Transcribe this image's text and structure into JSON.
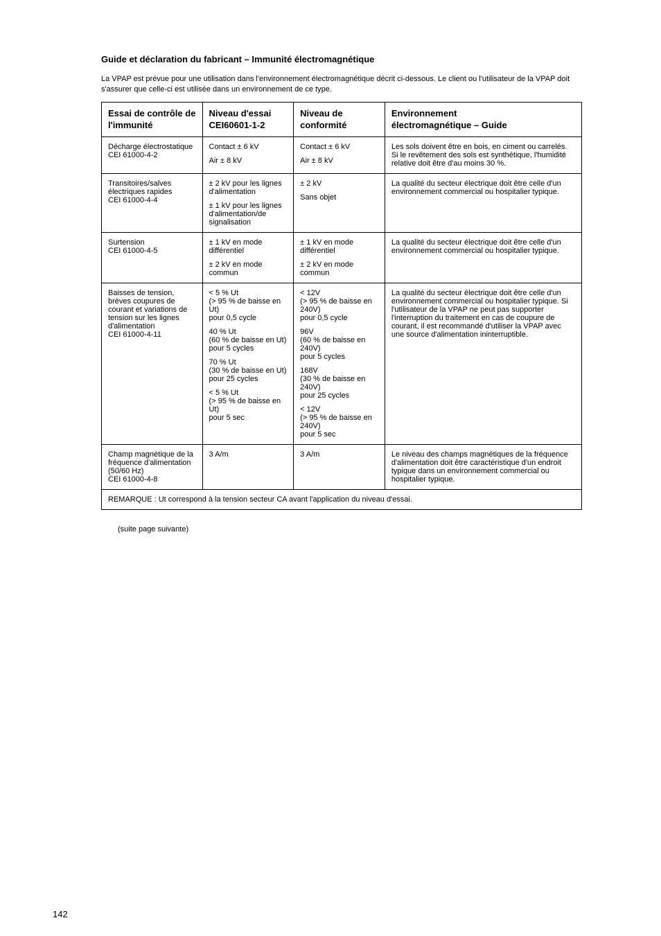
{
  "heading": "Guide et déclaration du fabricant – Immunité électromagnétique",
  "intro": "La VPAP est prévue pour une utilisation dans l'environnement électromagnétique décrit ci-dessous. Le client ou l'utilisateur de la VPAP doit s'assurer que celle-ci est utilisée dans un environnement de ce type.",
  "headers": {
    "c1": "Essai de contrôle de l'immunité",
    "c2a": "Niveau d'essai",
    "c2b": "CEI60601-1-2",
    "c3": "Niveau de conformité",
    "c4a": "Environnement",
    "c4b": "électromagnétique – Guide"
  },
  "row1": {
    "c1a": "Décharge électrostatique",
    "c1b": "CEI 61000-4-2",
    "c2a": "Contact ± 6 kV",
    "c2b": "Air ± 8 kV",
    "c3a": "Contact ± 6 kV",
    "c3b": "Air ± 8 kV",
    "c4": "Les sols doivent être en bois, en ciment ou carrelés. Si le revêtement des sols est synthétique, l'humidité relative doit être d'au moins 30 %."
  },
  "row2": {
    "c1a": "Transitoires/salves électriques rapides",
    "c1b": "CEI 61000-4-4",
    "c2a": "± 2 kV pour les lignes d'alimentation",
    "c2b": "± 1 kV pour les lignes d'alimentation/de signalisation",
    "c3a": "± 2 kV",
    "c3b": "Sans objet",
    "c4": "La qualité du secteur électrique doit être celle d'un environnement commercial ou hospitalier typique."
  },
  "row3": {
    "c1a": "Surtension",
    "c1b": "CEI 61000-4-5",
    "c2a": "± 1 kV en mode différentiel",
    "c2b": "± 2 kV en mode commun",
    "c3a": "± 1 kV en mode différentiel",
    "c3b": "± 2 kV en mode commun",
    "c4": "La qualité du secteur électrique doit être celle d'un environnement commercial ou hospitalier typique."
  },
  "row4": {
    "c1a": "Baisses de tension, brèves coupures de courant et variations de tension sur les lignes d'alimentation",
    "c1b": "CEI 61000-4-11",
    "c2a": "< 5 % Ut",
    "c2b": "(> 95 % de baisse en Ut)",
    "c2c": "pour 0,5 cycle",
    "c2d": "40 % Ut",
    "c2e": "(60 % de baisse en Ut)",
    "c2f": "pour 5 cycles",
    "c2g": "70 % Ut",
    "c2h": "(30 % de baisse en Ut)",
    "c2i": "pour 25 cycles",
    "c2j": "< 5 % Ut",
    "c2k": "(> 95 % de baisse en Ut)",
    "c2l": "pour 5 sec",
    "c3a": "< 12V",
    "c3b": "(> 95 % de baisse en 240V)",
    "c3c": "pour 0,5 cycle",
    "c3d": "96V",
    "c3e": "(60 % de baisse en 240V)",
    "c3f": "pour 5 cycles",
    "c3g": "168V",
    "c3h": "(30 % de baisse en 240V)",
    "c3i": "pour 25 cycles",
    "c3j": "< 12V",
    "c3k": "(> 95 % de baisse en 240V)",
    "c3l": "pour 5 sec",
    "c4": "La qualité du secteur électrique doit être celle d'un environnement commercial ou hospitalier typique. Si l'utilisateur de la VPAP ne peut pas supporter l'interruption du traitement en cas de coupure de courant, il est recommandé d'utiliser la VPAP avec une source d'alimentation ininterruptible."
  },
  "row5": {
    "c1a": "Champ magnétique de la fréquence d'alimentation (50/60 Hz)",
    "c1b": "CEI 61000-4-8",
    "c2": "3 A/m",
    "c3": "3 A/m",
    "c4": "Le niveau des champs magnétiques de la fréquence d'alimentation doit être caractéristique d'un endroit typique dans un environnement commercial ou hospitalier typique."
  },
  "note": "REMARQUE : Ut correspond à la tension secteur CA avant l'application du niveau d'essai.",
  "suite": "(suite page suivante)",
  "pageNum": "142"
}
